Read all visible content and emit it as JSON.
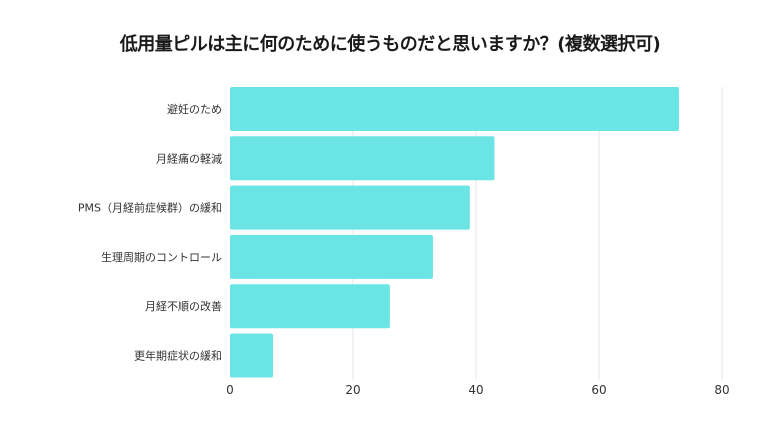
{
  "chart_data": {
    "type": "bar",
    "orientation": "horizontal",
    "title": "低用量ピルは主に何のために使うものだと思いますか？(複数選択可)",
    "categories": [
      "避妊のため",
      "月経痛の軽減",
      "PMS（月経前症候群）の緩和",
      "生理周期のコントロール",
      "月経不順の改善",
      "更年期症状の緩和"
    ],
    "values": [
      73,
      43,
      39,
      33,
      26,
      7
    ],
    "xlim": [
      0,
      80
    ],
    "xticks": [
      0,
      20,
      40,
      60,
      80
    ],
    "grid": true,
    "bar_color": "#6ae4e4",
    "xlabel": "",
    "ylabel": ""
  }
}
